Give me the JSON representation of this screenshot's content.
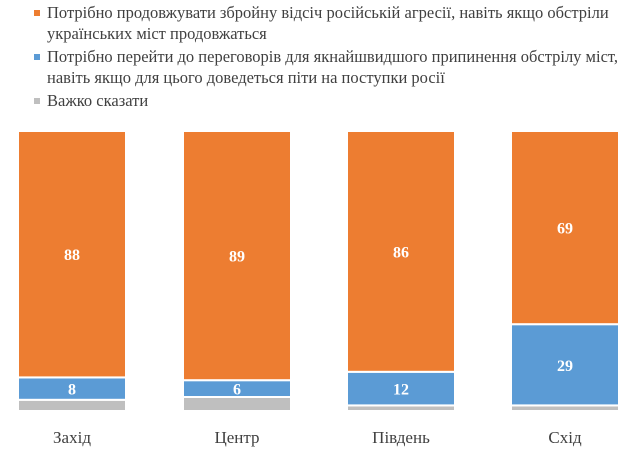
{
  "chart_data": {
    "type": "bar",
    "stacked": true,
    "categories": [
      "Захід",
      "Центр",
      "Південь",
      "Схід"
    ],
    "series": [
      {
        "name": "Потрібно продовжувати збройну відсіч російській агресії, навіть якщо обстріли українських міст продовжаться",
        "color": "#ED7D31",
        "values": [
          88,
          89,
          86,
          69
        ],
        "labels_shown": true
      },
      {
        "name": "Потрібно перейти до переговорів для якнайшвидшого припинення обстрілу міст, навіть якщо для цього доведеться піти на поступки росії",
        "color": "#5B9BD5",
        "values": [
          8,
          6,
          12,
          29
        ],
        "labels_shown": true
      },
      {
        "name": "Важко сказати",
        "color": "#BFBFBF",
        "values": [
          4,
          5,
          2,
          2
        ],
        "labels_shown": false
      }
    ],
    "ylim": [
      0,
      100
    ],
    "grid": false,
    "legend": "top"
  }
}
